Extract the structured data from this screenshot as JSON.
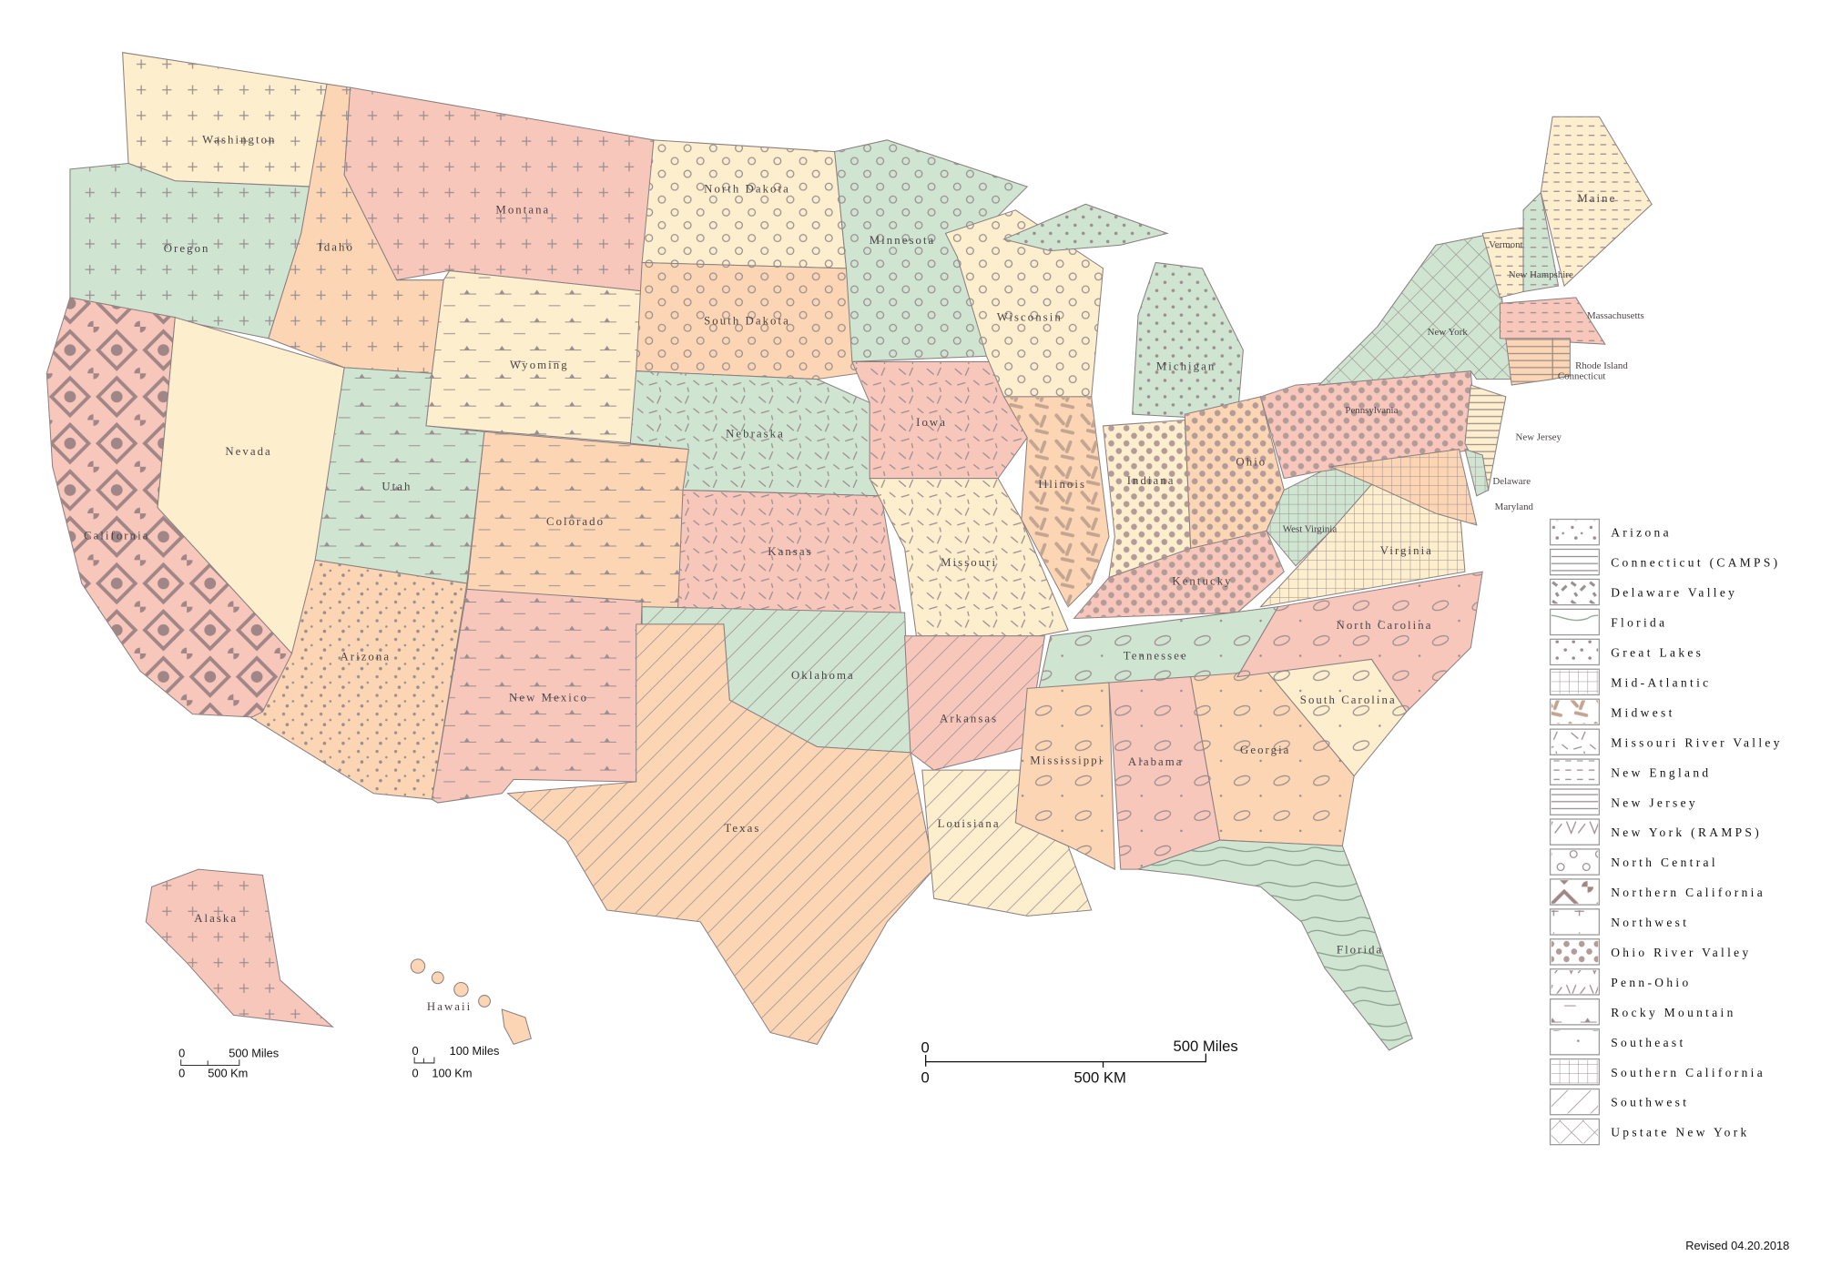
{
  "colors": {
    "pink": "#f8c7bb",
    "green": "#cfe5d2",
    "peach": "#fcd6b4",
    "cream": "#fdeece",
    "pattern": "#9a8e8f",
    "border": "#8a7f80"
  },
  "states": [
    {
      "id": "washington",
      "label": "Washington",
      "fill": "cream",
      "pattern": "plus"
    },
    {
      "id": "oregon",
      "label": "Oregon",
      "fill": "green",
      "pattern": "plus"
    },
    {
      "id": "california",
      "label": "California",
      "fill": "pink",
      "pattern": "floral"
    },
    {
      "id": "nevada",
      "label": "Nevada",
      "fill": "cream",
      "pattern": "none"
    },
    {
      "id": "idaho",
      "label": "Idaho",
      "fill": "peach",
      "pattern": "plus"
    },
    {
      "id": "montana",
      "label": "Montana",
      "fill": "pink",
      "pattern": "plus"
    },
    {
      "id": "wyoming",
      "label": "Wyoming",
      "fill": "cream",
      "pattern": "mountain"
    },
    {
      "id": "utah",
      "label": "Utah",
      "fill": "green",
      "pattern": "mountain"
    },
    {
      "id": "arizona",
      "label": "Arizona",
      "fill": "peach",
      "pattern": "dots"
    },
    {
      "id": "colorado",
      "label": "Colorado",
      "fill": "peach",
      "pattern": "mountain"
    },
    {
      "id": "new-mexico",
      "label": "New Mexico",
      "fill": "pink",
      "pattern": "mountain"
    },
    {
      "id": "north-dakota",
      "label": "North Dakota",
      "fill": "cream",
      "pattern": "circles"
    },
    {
      "id": "south-dakota",
      "label": "South Dakota",
      "fill": "peach",
      "pattern": "circles"
    },
    {
      "id": "nebraska",
      "label": "Nebraska",
      "fill": "green",
      "pattern": "dashes"
    },
    {
      "id": "kansas",
      "label": "Kansas",
      "fill": "pink",
      "pattern": "dashes"
    },
    {
      "id": "oklahoma",
      "label": "Oklahoma",
      "fill": "green",
      "pattern": "hatch"
    },
    {
      "id": "texas",
      "label": "Texas",
      "fill": "peach",
      "pattern": "hatch"
    },
    {
      "id": "minnesota",
      "label": "Minnesota",
      "fill": "green",
      "pattern": "circles"
    },
    {
      "id": "iowa",
      "label": "Iowa",
      "fill": "pink",
      "pattern": "dashes"
    },
    {
      "id": "missouri",
      "label": "Missouri",
      "fill": "cream",
      "pattern": "dashes"
    },
    {
      "id": "arkansas",
      "label": "Arkansas",
      "fill": "pink",
      "pattern": "hatch"
    },
    {
      "id": "louisiana",
      "label": "Louisiana",
      "fill": "cream",
      "pattern": "hatch"
    },
    {
      "id": "wisconsin",
      "label": "Wisconsin",
      "fill": "cream",
      "pattern": "circles"
    },
    {
      "id": "illinois",
      "label": "Illinois",
      "fill": "peach",
      "pattern": "pills"
    },
    {
      "id": "michigan",
      "label": "Michigan",
      "fill": "green",
      "pattern": "smalldots"
    },
    {
      "id": "michigan-upper",
      "label": "",
      "fill": "green",
      "pattern": "smalldots"
    },
    {
      "id": "indiana",
      "label": "Indiana",
      "fill": "cream",
      "pattern": "bigdots"
    },
    {
      "id": "ohio",
      "label": "Ohio",
      "fill": "peach",
      "pattern": "bigdots"
    },
    {
      "id": "kentucky",
      "label": "Kentucky",
      "fill": "pink",
      "pattern": "bigdots"
    },
    {
      "id": "tennessee",
      "label": "Tennessee",
      "fill": "green",
      "pattern": "ovals"
    },
    {
      "id": "mississippi",
      "label": "Mississippi",
      "fill": "peach",
      "pattern": "ovals"
    },
    {
      "id": "alabama",
      "label": "Alabama",
      "fill": "pink",
      "pattern": "ovals"
    },
    {
      "id": "georgia",
      "label": "Georgia",
      "fill": "peach",
      "pattern": "ovals"
    },
    {
      "id": "florida",
      "label": "Florida",
      "fill": "green",
      "pattern": "contour"
    },
    {
      "id": "south-carolina",
      "label": "South Carolina",
      "fill": "cream",
      "pattern": "ovals"
    },
    {
      "id": "north-carolina",
      "label": "North Carolina",
      "fill": "pink",
      "pattern": "ovals"
    },
    {
      "id": "virginia",
      "label": "Virginia",
      "fill": "cream",
      "pattern": "grid"
    },
    {
      "id": "west-virginia",
      "label": "West Virginia",
      "fill": "green",
      "pattern": "grid"
    },
    {
      "id": "pennsylvania",
      "label": "Pennsylvania",
      "fill": "pink",
      "pattern": "bigdots"
    },
    {
      "id": "new-york",
      "label": "New York",
      "fill": "green",
      "pattern": "cross"
    },
    {
      "id": "new-jersey",
      "label": "New Jersey",
      "fill": "cream",
      "pattern": "lines"
    },
    {
      "id": "maryland",
      "label": "Maryland",
      "fill": "peach",
      "pattern": "grid"
    },
    {
      "id": "delaware",
      "label": "Delaware",
      "fill": "green",
      "pattern": "grid"
    },
    {
      "id": "vermont",
      "label": "Vermont",
      "fill": "cream",
      "pattern": "dashline"
    },
    {
      "id": "new-hampshire",
      "label": "New Hampshire",
      "fill": "green",
      "pattern": "dashline"
    },
    {
      "id": "maine",
      "label": "Maine",
      "fill": "cream",
      "pattern": "dashline"
    },
    {
      "id": "massachusetts",
      "label": "Massachusetts",
      "fill": "pink",
      "pattern": "dashline"
    },
    {
      "id": "rhode-island",
      "label": "Rhode Island",
      "fill": "peach",
      "pattern": "lines"
    },
    {
      "id": "connecticut",
      "label": "Connecticut",
      "fill": "peach",
      "pattern": "lines"
    },
    {
      "id": "alaska",
      "label": "Alaska",
      "fill": "pink",
      "pattern": "plus"
    },
    {
      "id": "hawaii",
      "label": "Hawaii",
      "fill": "peach",
      "pattern": "none"
    }
  ],
  "legend": [
    {
      "label": "Arizona",
      "pattern": "dots"
    },
    {
      "label": "Connecticut (CAMPS)",
      "pattern": "lines"
    },
    {
      "label": "Delaware Valley",
      "pattern": "blobs"
    },
    {
      "label": "Florida",
      "pattern": "contour"
    },
    {
      "label": "Great Lakes",
      "pattern": "smalldots"
    },
    {
      "label": "Mid-Atlantic",
      "pattern": "grid"
    },
    {
      "label": "Midwest",
      "pattern": "pills"
    },
    {
      "label": "Missouri River Valley",
      "pattern": "dashes"
    },
    {
      "label": "New England",
      "pattern": "dashline"
    },
    {
      "label": "New Jersey",
      "pattern": "lines"
    },
    {
      "label": "New York (RAMPS)",
      "pattern": "vees"
    },
    {
      "label": "North Central",
      "pattern": "circles"
    },
    {
      "label": "Northern California",
      "pattern": "floral"
    },
    {
      "label": "Northwest",
      "pattern": "plus"
    },
    {
      "label": "Ohio River Valley",
      "pattern": "bigdots"
    },
    {
      "label": "Penn-Ohio",
      "pattern": "vees"
    },
    {
      "label": "Rocky Mountain",
      "pattern": "mountain"
    },
    {
      "label": "Southeast",
      "pattern": "ovals"
    },
    {
      "label": "Southern California",
      "pattern": "grid"
    },
    {
      "label": "Southwest",
      "pattern": "hatch"
    },
    {
      "label": "Upstate New York",
      "pattern": "cross"
    }
  ],
  "scales": {
    "alaska": {
      "zero": "0",
      "miles": "500 Miles",
      "km": "500 Km"
    },
    "hawaii": {
      "zero": "0",
      "miles": "100 Miles",
      "km": "100 Km"
    },
    "main": {
      "zero": "0",
      "miles": "500 Miles",
      "km": "500 KM"
    }
  },
  "revised": "Revised 04.20.2018"
}
